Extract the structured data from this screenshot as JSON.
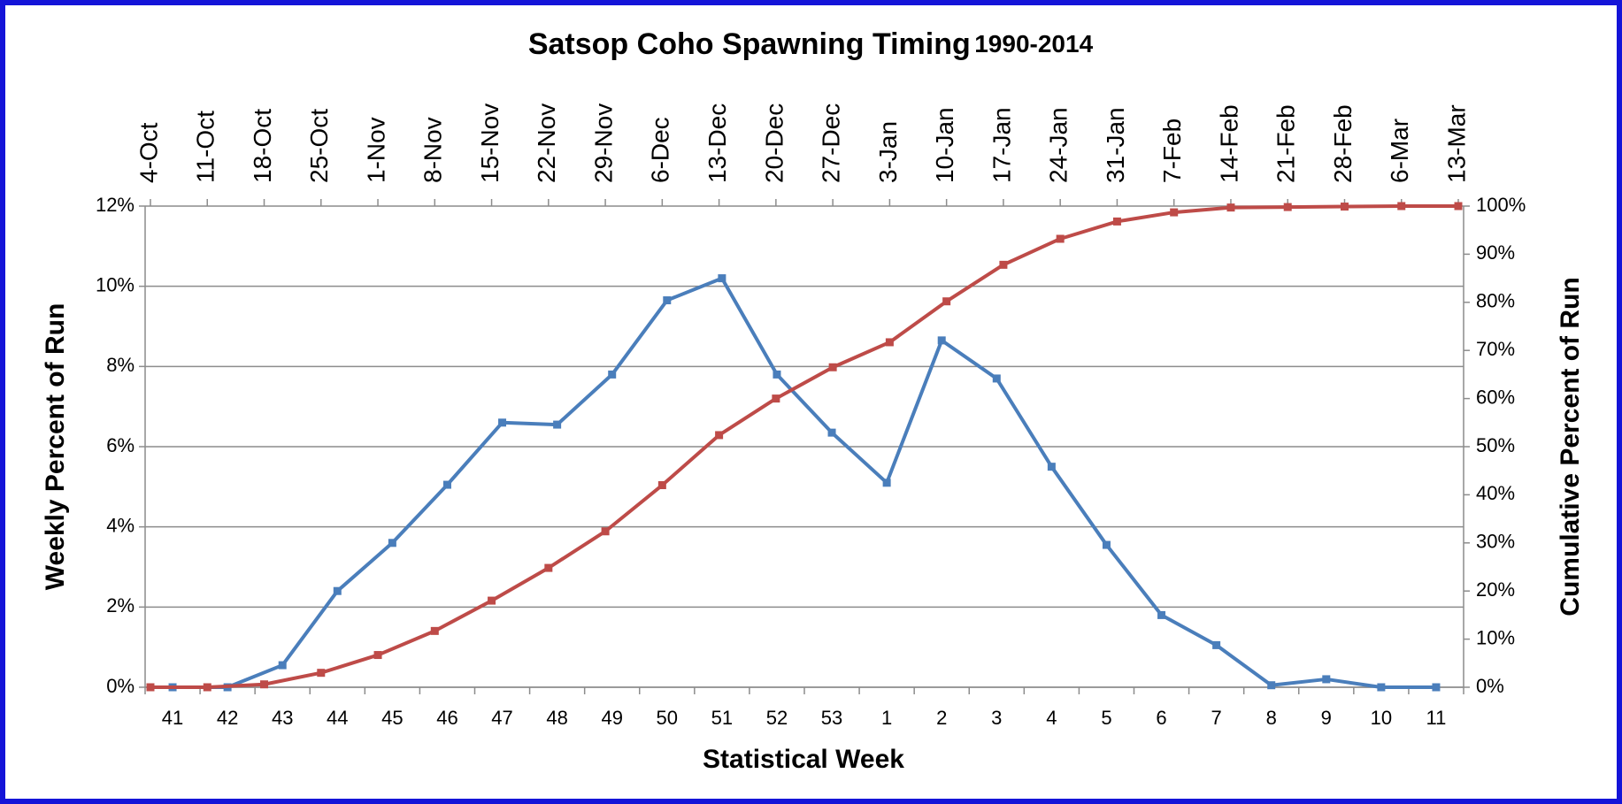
{
  "chart_data": {
    "type": "line",
    "title": "Satsop Coho Spawning Timing",
    "subtitle": "1990-2014",
    "xlabel": "Statistical Week",
    "ylabel": "Weekly Percent of Run",
    "y2label": "Cumulative Percent of Run",
    "categories": [
      "41",
      "42",
      "43",
      "44",
      "45",
      "46",
      "47",
      "48",
      "49",
      "50",
      "51",
      "52",
      "53",
      "1",
      "2",
      "3",
      "4",
      "5",
      "6",
      "7",
      "8",
      "9",
      "10",
      "11"
    ],
    "x2categories": [
      "4-Oct",
      "11-Oct",
      "18-Oct",
      "25-Oct",
      "1-Nov",
      "8-Nov",
      "15-Nov",
      "22-Nov",
      "29-Nov",
      "6-Dec",
      "13-Dec",
      "20-Dec",
      "27-Dec",
      "3-Jan",
      "10-Jan",
      "17-Jan",
      "24-Jan",
      "31-Jan",
      "7-Feb",
      "14-Feb",
      "21-Feb",
      "28-Feb",
      "6-Mar",
      "13-Mar"
    ],
    "ylim": [
      0,
      12
    ],
    "yticks": [
      {
        "value": 0,
        "label": "0%"
      },
      {
        "value": 2,
        "label": "2%"
      },
      {
        "value": 4,
        "label": "4%"
      },
      {
        "value": 6,
        "label": "6%"
      },
      {
        "value": 8,
        "label": "8%"
      },
      {
        "value": 10,
        "label": "10%"
      },
      {
        "value": 12,
        "label": "12%"
      }
    ],
    "y2lim": [
      0,
      100
    ],
    "y2ticks": [
      {
        "value": 0,
        "label": "0%"
      },
      {
        "value": 10,
        "label": "10%"
      },
      {
        "value": 20,
        "label": "20%"
      },
      {
        "value": 30,
        "label": "30%"
      },
      {
        "value": 40,
        "label": "40%"
      },
      {
        "value": 50,
        "label": "50%"
      },
      {
        "value": 60,
        "label": "60%"
      },
      {
        "value": 70,
        "label": "70%"
      },
      {
        "value": 80,
        "label": "80%"
      },
      {
        "value": 90,
        "label": "90%"
      },
      {
        "value": 100,
        "label": "100%"
      }
    ],
    "grid": true,
    "series": [
      {
        "name": "Weekly Percent of Run",
        "color": "#4a7ebb",
        "axis": "y",
        "xaxis": "x",
        "values": [
          0,
          0,
          0.55,
          2.4,
          3.6,
          5.05,
          6.6,
          6.55,
          7.8,
          9.65,
          10.2,
          7.8,
          6.35,
          5.1,
          8.65,
          7.7,
          5.5,
          3.55,
          1.8,
          1.05,
          0.05,
          0.2,
          0,
          0
        ]
      },
      {
        "name": "Cumulative Percent of Run",
        "color": "#be4b48",
        "axis": "y2",
        "xaxis": "x2",
        "values": [
          0,
          0,
          0.6,
          3,
          6.7,
          11.7,
          18,
          24.8,
          32.4,
          42,
          52.4,
          60,
          66.5,
          71.7,
          80.2,
          87.8,
          93.2,
          96.8,
          98.7,
          99.7,
          99.8,
          99.9,
          100,
          100
        ]
      }
    ]
  }
}
